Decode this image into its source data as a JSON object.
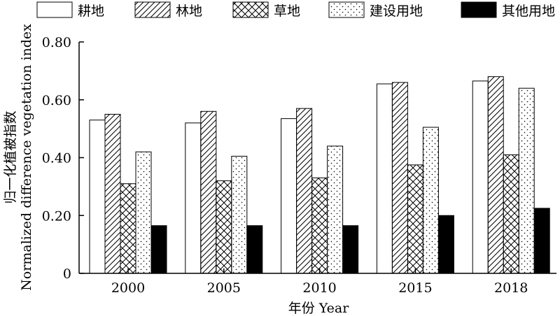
{
  "chart_data": {
    "type": "bar",
    "xlabel": "年份 Year",
    "ylabel_cn": "归一化植被指数",
    "ylabel_en": "Normalized difference vegetation index",
    "categories": [
      "2000",
      "2005",
      "2010",
      "2015",
      "2018"
    ],
    "ylim": [
      0,
      0.8
    ],
    "yticks": [
      0,
      0.2,
      0.4,
      0.6,
      0.8
    ],
    "ytick_labels": [
      "0",
      "0.20",
      "0.40",
      "0.60",
      "0.80"
    ],
    "grid": false,
    "legend_position": "top",
    "series": [
      {
        "name": "耕地",
        "pattern": "solid-white",
        "values": [
          0.53,
          0.52,
          0.535,
          0.655,
          0.665
        ]
      },
      {
        "name": "林地",
        "pattern": "diagonal",
        "values": [
          0.55,
          0.56,
          0.57,
          0.66,
          0.68
        ]
      },
      {
        "name": "草地",
        "pattern": "crosshatch",
        "values": [
          0.31,
          0.32,
          0.33,
          0.375,
          0.41
        ]
      },
      {
        "name": "建设用地",
        "pattern": "dots",
        "values": [
          0.42,
          0.405,
          0.44,
          0.505,
          0.64
        ]
      },
      {
        "name": "其他用地",
        "pattern": "solid-black",
        "values": [
          0.165,
          0.165,
          0.165,
          0.2,
          0.225
        ]
      }
    ]
  }
}
